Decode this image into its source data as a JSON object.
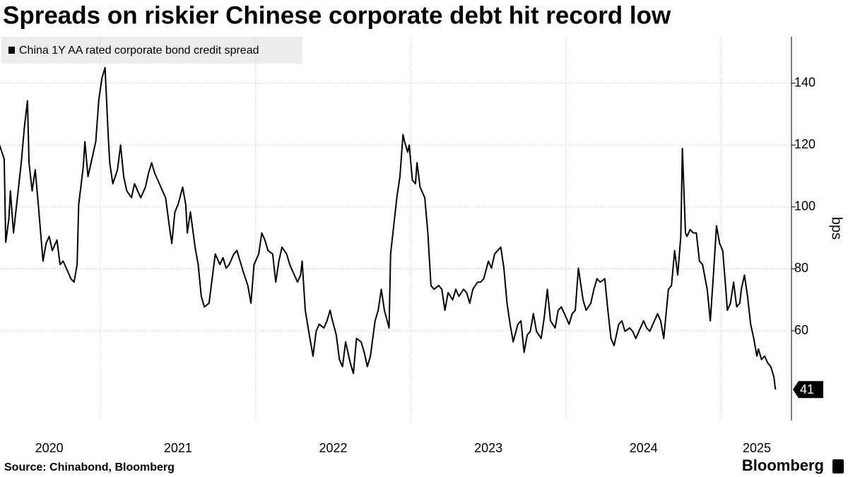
{
  "chart_data": {
    "type": "line",
    "title": "Spreads on riskier Chinese corporate debt hit record low",
    "y_label": "bps",
    "source": "Source: Chinabond, Bloomberg",
    "brand": "Bloomberg",
    "x": [
      2020.35,
      2020.38,
      2020.39,
      2020.41,
      2020.42,
      2020.44,
      2020.47,
      2020.49,
      2020.51,
      2020.53,
      2020.54,
      2020.56,
      2020.58,
      2020.6,
      2020.63,
      2020.65,
      2020.67,
      2020.69,
      2020.72,
      2020.74,
      2020.76,
      2020.79,
      2020.81,
      2020.83,
      2020.85,
      2020.86,
      2020.89,
      2020.9,
      2020.92,
      2020.95,
      2020.97,
      2020.99,
      2021.01,
      2021.03,
      2021.05,
      2021.06,
      2021.08,
      2021.11,
      2021.13,
      2021.15,
      2021.17,
      2021.2,
      2021.22,
      2021.24,
      2021.26,
      2021.29,
      2021.31,
      2021.33,
      2021.35,
      2021.38,
      2021.4,
      2021.42,
      2021.45,
      2021.46,
      2021.48,
      2021.5,
      2021.53,
      2021.55,
      2021.56,
      2021.58,
      2021.61,
      2021.63,
      2021.65,
      2021.67,
      2021.7,
      2021.72,
      2021.74,
      2021.77,
      2021.79,
      2021.81,
      2021.83,
      2021.86,
      2021.88,
      2021.9,
      2021.92,
      2021.95,
      2021.97,
      2021.99,
      2022.02,
      2022.04,
      2022.06,
      2022.08,
      2022.11,
      2022.13,
      2022.15,
      2022.17,
      2022.2,
      2022.22,
      2022.24,
      2022.27,
      2022.29,
      2022.3,
      2022.32,
      2022.35,
      2022.37,
      2022.39,
      2022.41,
      2022.44,
      2022.46,
      2022.48,
      2022.49,
      2022.52,
      2022.54,
      2022.56,
      2022.58,
      2022.61,
      2022.63,
      2022.65,
      2022.68,
      2022.7,
      2022.72,
      2022.74,
      2022.77,
      2022.79,
      2022.81,
      2022.83,
      2022.86,
      2022.87,
      2022.89,
      2022.91,
      2022.93,
      2022.95,
      2022.96,
      2022.98,
      2022.99,
      2023.01,
      2023.03,
      2023.04,
      2023.06,
      2023.09,
      2023.11,
      2023.13,
      2023.15,
      2023.18,
      2023.2,
      2023.22,
      2023.24,
      2023.27,
      2023.29,
      2023.31,
      2023.34,
      2023.36,
      2023.38,
      2023.4,
      2023.43,
      2023.45,
      2023.47,
      2023.5,
      2023.52,
      2023.54,
      2023.56,
      2023.58,
      2023.6,
      2023.62,
      2023.64,
      2023.66,
      2023.69,
      2023.71,
      2023.73,
      2023.75,
      2023.77,
      2023.79,
      2023.81,
      2023.84,
      2023.86,
      2023.88,
      2023.9,
      2023.93,
      2023.95,
      2023.97,
      2023.99,
      2024.02,
      2024.04,
      2024.06,
      2024.08,
      2024.1,
      2024.11,
      2024.13,
      2024.16,
      2024.18,
      2024.2,
      2024.22,
      2024.25,
      2024.27,
      2024.29,
      2024.31,
      2024.34,
      2024.36,
      2024.38,
      2024.41,
      2024.43,
      2024.45,
      2024.47,
      2024.5,
      2024.52,
      2024.54,
      2024.56,
      2024.59,
      2024.61,
      2024.63,
      2024.66,
      2024.68,
      2024.7,
      2024.72,
      2024.74,
      2024.75,
      2024.77,
      2024.78,
      2024.8,
      2024.82,
      2024.84,
      2024.86,
      2024.88,
      2024.91,
      2024.93,
      2024.95,
      2024.97,
      2024.99,
      2025.01,
      2025.03,
      2025.04,
      2025.06,
      2025.08,
      2025.1,
      2025.12,
      2025.13,
      2025.15,
      2025.17,
      2025.19,
      2025.21,
      2025.23,
      2025.24,
      2025.26,
      2025.28,
      2025.3,
      2025.32,
      2025.34,
      2025.35
    ],
    "series": [
      {
        "name": "China 1Y AA rated corporate bond credit spread",
        "color": "#000000",
        "values": [
          120,
          115.5,
          88.6,
          96.1,
          105.2,
          91.6,
          105.2,
          114.3,
          125.7,
          134.3,
          114.3,
          105.2,
          112,
          100.7,
          82.5,
          88.2,
          90.5,
          85.9,
          89.3,
          81.4,
          82.5,
          79.1,
          76.8,
          75.7,
          81.4,
          100.7,
          113.2,
          121.1,
          109.8,
          116.6,
          121.1,
          134.8,
          141.6,
          145,
          123.4,
          114.3,
          107.5,
          112,
          120,
          109.8,
          105.2,
          103,
          107.5,
          105.2,
          103,
          106.4,
          110.9,
          114.3,
          110.9,
          107.5,
          105.2,
          103,
          91.6,
          88.2,
          98.4,
          100.7,
          106.4,
          100.7,
          91.6,
          98.4,
          87,
          81.4,
          71.1,
          67.7,
          68.9,
          76.8,
          84.8,
          81.4,
          83.6,
          80.2,
          81.4,
          84.8,
          85.9,
          82.5,
          79.1,
          74.6,
          68.9,
          81.4,
          84.8,
          91.6,
          89.3,
          85.9,
          84.8,
          75.7,
          82.5,
          87,
          84.8,
          81.4,
          79.1,
          75.7,
          78,
          82.5,
          66.6,
          57.5,
          51.8,
          59.8,
          62.1,
          60.9,
          63.2,
          66.6,
          64.3,
          58.6,
          50.7,
          48.4,
          56.4,
          49.6,
          46.2,
          57.5,
          56.4,
          53,
          48.4,
          51.8,
          63.2,
          66.6,
          73.4,
          66.6,
          60.9,
          84.8,
          93.9,
          103,
          109.8,
          123.4,
          121.1,
          117.7,
          120,
          108.7,
          107.5,
          114.3,
          106.4,
          103,
          91.6,
          74.6,
          73.4,
          74.6,
          73.4,
          66.6,
          72.3,
          70,
          73.4,
          71.1,
          73.4,
          72.3,
          68.9,
          73.4,
          75.7,
          75.7,
          76.8,
          82.5,
          80.2,
          84.8,
          85.9,
          87,
          80.2,
          68.9,
          62.1,
          56.4,
          62.1,
          63.2,
          53,
          58.6,
          59.8,
          65.5,
          59.8,
          57.5,
          64.3,
          73.4,
          63.2,
          60.9,
          66.6,
          67.7,
          65.5,
          62.1,
          65.5,
          66.6,
          80.2,
          73.4,
          70,
          66.6,
          68.9,
          73.4,
          76.8,
          75.7,
          76.8,
          66.6,
          57.5,
          55.2,
          62.1,
          63.2,
          59.8,
          60.9,
          59.8,
          57.5,
          59.8,
          63.2,
          60.9,
          59.8,
          62.1,
          65.5,
          63.2,
          57.5,
          73.4,
          74.6,
          85.9,
          78,
          90.5,
          118.9,
          91.6,
          90.5,
          92.7,
          91.6,
          91.6,
          82.5,
          81.4,
          73.4,
          63.2,
          78,
          93.9,
          88.2,
          85.9,
          73.4,
          66.6,
          68.9,
          75.7,
          67.7,
          68.9,
          73.4,
          78,
          71.1,
          62.1,
          57.5,
          51.8,
          54.1,
          50.7,
          51.8,
          49.6,
          48.4,
          45,
          41
        ]
      }
    ],
    "xlim": [
      2020.353,
      2025.453
    ],
    "xticks": [
      {
        "value": 2020.67,
        "label": "2020"
      },
      {
        "value": 2021.5,
        "label": "2021"
      },
      {
        "value": 2022.5,
        "label": "2022"
      },
      {
        "value": 2023.5,
        "label": "2023"
      },
      {
        "value": 2024.5,
        "label": "2024"
      },
      {
        "value": 2025.23,
        "label": "2025"
      }
    ],
    "xgrid": [
      2021,
      2022,
      2023,
      2024,
      2025
    ],
    "ylim": [
      31,
      155
    ],
    "yticks": [
      60,
      80,
      100,
      120,
      140
    ],
    "grid": true
  }
}
